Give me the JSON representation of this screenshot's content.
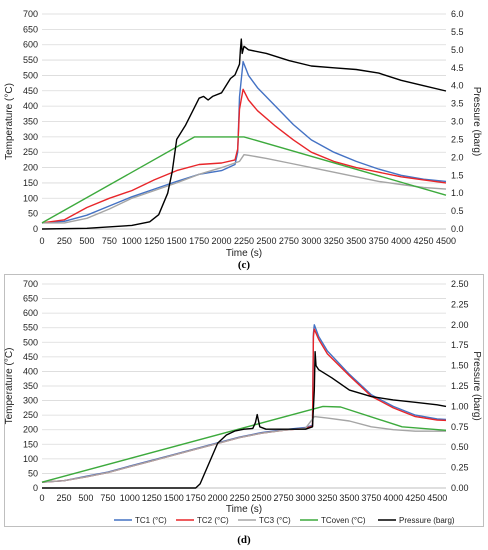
{
  "chart_data": [
    {
      "type": "line",
      "panel_label": "(c)",
      "xlabel": "Time (s)",
      "ylabel": "Temperature (°C)",
      "y2label": "Pressure (barg)",
      "xlim": [
        0,
        4500
      ],
      "ylim": [
        0,
        700
      ],
      "y2lim": [
        0,
        6
      ],
      "xticks": [
        0,
        250,
        500,
        750,
        1000,
        1250,
        1500,
        1750,
        2000,
        2250,
        2500,
        2750,
        3000,
        3250,
        3500,
        3750,
        4000,
        4250,
        4500
      ],
      "yticks": [
        0,
        50,
        100,
        150,
        200,
        250,
        300,
        350,
        400,
        450,
        500,
        550,
        600,
        650,
        700
      ],
      "y2ticks": [
        "0.0",
        "0.5",
        "1.0",
        "1.5",
        "2.0",
        "2.5",
        "3.0",
        "3.5",
        "4.0",
        "4.5",
        "5.0",
        "5.5",
        "6.0"
      ],
      "grid": true,
      "series": [
        {
          "color": "#4472c4",
          "axis": "left",
          "x": [
            0,
            250,
            500,
            750,
            1000,
            1250,
            1500,
            1750,
            2000,
            2150,
            2180,
            2200,
            2240,
            2300,
            2400,
            2600,
            2800,
            3000,
            3250,
            3500,
            3750,
            4000,
            4250,
            4500
          ],
          "y": [
            20,
            25,
            45,
            75,
            105,
            130,
            155,
            178,
            190,
            210,
            250,
            430,
            545,
            500,
            460,
            400,
            340,
            290,
            250,
            220,
            195,
            175,
            162,
            155
          ]
        },
        {
          "color": "#e8262a",
          "axis": "left",
          "x": [
            0,
            250,
            500,
            750,
            1000,
            1250,
            1500,
            1750,
            2000,
            2150,
            2180,
            2200,
            2240,
            2300,
            2400,
            2600,
            2800,
            3000,
            3250,
            3500,
            3750,
            4000,
            4250,
            4500
          ],
          "y": [
            20,
            30,
            70,
            100,
            125,
            160,
            190,
            210,
            215,
            225,
            260,
            390,
            455,
            420,
            385,
            335,
            290,
            250,
            220,
            200,
            185,
            170,
            160,
            150
          ]
        },
        {
          "color": "#a5a5a5",
          "axis": "left",
          "x": [
            0,
            250,
            500,
            750,
            1000,
            1250,
            1500,
            1750,
            2000,
            2200,
            2250,
            2300,
            2500,
            2750,
            3000,
            3250,
            3500,
            3750,
            4000,
            4250,
            4500
          ],
          "y": [
            20,
            20,
            35,
            65,
            100,
            125,
            150,
            178,
            200,
            220,
            242,
            240,
            230,
            215,
            200,
            185,
            170,
            155,
            145,
            135,
            130
          ]
        },
        {
          "color": "#3daa3d",
          "axis": "left",
          "x": [
            0,
            1700,
            2250,
            4500
          ],
          "y": [
            20,
            300,
            300,
            110
          ]
        },
        {
          "color": "#000000",
          "axis": "right",
          "x": [
            0,
            500,
            1000,
            1200,
            1300,
            1400,
            1450,
            1500,
            1600,
            1700,
            1750,
            1800,
            1850,
            1900,
            2000,
            2100,
            2150,
            2200,
            2210,
            2220,
            2230,
            2250,
            2300,
            2500,
            2750,
            3000,
            3250,
            3500,
            3750,
            4000,
            4250,
            4500
          ],
          "y": [
            0.0,
            0.02,
            0.1,
            0.2,
            0.4,
            1.0,
            1.6,
            2.5,
            2.9,
            3.4,
            3.65,
            3.7,
            3.6,
            3.7,
            3.8,
            4.2,
            4.3,
            4.6,
            5.0,
            5.3,
            4.9,
            5.1,
            5.0,
            4.9,
            4.7,
            4.55,
            4.5,
            4.45,
            4.35,
            4.15,
            4.0,
            3.85
          ]
        }
      ]
    },
    {
      "type": "line",
      "panel_label": "(d)",
      "xlabel": "Time (s)",
      "ylabel": "Temperature (°C)",
      "y2label": "Pressure (barg)",
      "xlim": [
        0,
        4600
      ],
      "ylim": [
        0,
        700
      ],
      "y2lim": [
        0,
        2.5
      ],
      "xticks": [
        0,
        250,
        500,
        750,
        1000,
        1250,
        1500,
        1750,
        2000,
        2250,
        2500,
        2750,
        3000,
        3250,
        3500,
        3750,
        4000,
        4250,
        4500
      ],
      "yticks": [
        0,
        50,
        100,
        150,
        200,
        250,
        300,
        350,
        400,
        450,
        500,
        550,
        600,
        650,
        700
      ],
      "y2ticks": [
        "0.00",
        "0.25",
        "0.50",
        "0.75",
        "1.00",
        "1.25",
        "1.50",
        "1.75",
        "2.00",
        "2.25",
        "2.50"
      ],
      "grid": true,
      "legend_position": "bottom",
      "series": [
        {
          "name": "TC1 (°C)",
          "color": "#4472c4",
          "axis": "left",
          "x": [
            0,
            250,
            500,
            750,
            1000,
            1250,
            1500,
            1750,
            2000,
            2250,
            2500,
            2750,
            3000,
            3080,
            3090,
            3100,
            3150,
            3250,
            3500,
            3750,
            4000,
            4250,
            4500,
            4600
          ],
          "y": [
            20,
            25,
            40,
            55,
            75,
            95,
            115,
            135,
            155,
            175,
            190,
            200,
            208,
            215,
            530,
            560,
            520,
            470,
            390,
            320,
            280,
            250,
            237,
            235
          ]
        },
        {
          "name": "TC2 (°C)",
          "color": "#e8262a",
          "axis": "left",
          "x": [
            0,
            250,
            500,
            750,
            1000,
            1250,
            1500,
            1750,
            2000,
            2250,
            2500,
            2750,
            3000,
            3080,
            3090,
            3100,
            3150,
            3250,
            3500,
            3750,
            4000,
            4250,
            4500,
            4600
          ],
          "y": [
            20,
            25,
            38,
            53,
            73,
            93,
            113,
            133,
            153,
            173,
            188,
            198,
            205,
            212,
            520,
            545,
            510,
            460,
            385,
            315,
            275,
            245,
            233,
            232
          ]
        },
        {
          "name": "TC3 (°C)",
          "color": "#a5a5a5",
          "axis": "left",
          "x": [
            0,
            250,
            500,
            750,
            1000,
            1250,
            1500,
            1750,
            2000,
            2250,
            2500,
            2750,
            3000,
            3100,
            3250,
            3500,
            3750,
            4000,
            4250,
            4500,
            4600
          ],
          "y": [
            20,
            25,
            38,
            53,
            73,
            93,
            113,
            133,
            153,
            173,
            188,
            198,
            205,
            245,
            240,
            230,
            210,
            200,
            195,
            195,
            195
          ]
        },
        {
          "name": "TCoven (°C)",
          "color": "#3daa3d",
          "axis": "left",
          "x": [
            0,
            3200,
            3400,
            4100,
            4600
          ],
          "y": [
            20,
            280,
            278,
            210,
            198
          ]
        },
        {
          "name": "Pressure (barg)",
          "color": "#000000",
          "axis": "right",
          "x": [
            0,
            1750,
            1800,
            1900,
            2000,
            2100,
            2200,
            2300,
            2400,
            2430,
            2450,
            2480,
            2550,
            3000,
            3080,
            3100,
            3110,
            3120,
            3150,
            3300,
            3500,
            3750,
            4000,
            4250,
            4500,
            4600
          ],
          "y": [
            0.0,
            0.0,
            0.05,
            0.3,
            0.55,
            0.65,
            0.7,
            0.72,
            0.73,
            0.8,
            0.9,
            0.75,
            0.72,
            0.72,
            0.75,
            1.2,
            1.67,
            1.5,
            1.45,
            1.35,
            1.2,
            1.12,
            1.08,
            1.05,
            1.02,
            1.0
          ]
        }
      ]
    }
  ]
}
